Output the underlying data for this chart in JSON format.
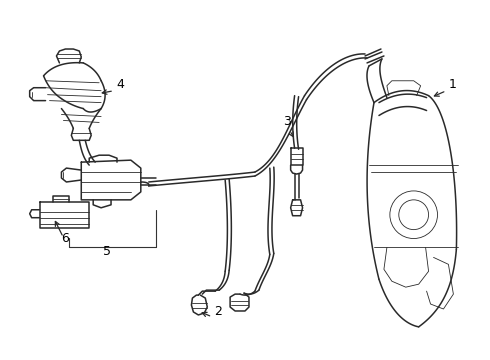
{
  "background_color": "#ffffff",
  "line_color": "#2a2a2a",
  "label_color": "#000000",
  "line_width": 1.1,
  "thin_line": 0.6,
  "figsize": [
    4.9,
    3.6
  ],
  "dpi": 100
}
